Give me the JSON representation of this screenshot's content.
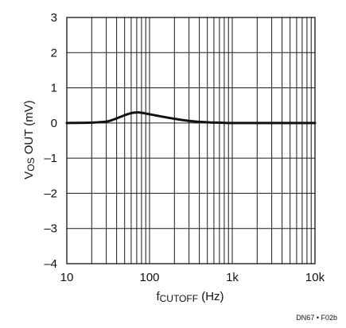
{
  "chart_data": {
    "type": "line",
    "x_scale": "log",
    "xlim": [
      10,
      10000
    ],
    "ylim": [
      -4,
      3
    ],
    "x_ticks": [
      {
        "value": 10,
        "label": "10"
      },
      {
        "value": 100,
        "label": "100"
      },
      {
        "value": 1000,
        "label": "1k"
      },
      {
        "value": 10000,
        "label": "10k"
      }
    ],
    "y_ticks": [
      {
        "value": 3,
        "label": "3"
      },
      {
        "value": 2,
        "label": "2"
      },
      {
        "value": 1,
        "label": "1"
      },
      {
        "value": 0,
        "label": "0"
      },
      {
        "value": -1,
        "label": "–1"
      },
      {
        "value": -2,
        "label": "–2"
      },
      {
        "value": -3,
        "label": "–3"
      },
      {
        "value": -4,
        "label": "–4"
      }
    ],
    "xlabel_main": "f",
    "xlabel_sub": "CUTOFF",
    "xlabel_unit": " (Hz)",
    "ylabel_main": "V",
    "ylabel_sub": "OS",
    "ylabel_rest": " OUT (mV)",
    "grid": true,
    "series": [
      {
        "x": [
          10,
          20,
          30,
          35,
          40,
          50,
          60,
          70,
          80,
          100,
          150,
          200,
          300,
          500,
          700,
          1000,
          2000,
          5000,
          10000
        ],
        "y": [
          0,
          0.01,
          0.04,
          0.08,
          0.13,
          0.22,
          0.28,
          0.3,
          0.29,
          0.25,
          0.17,
          0.12,
          0.06,
          0.02,
          0.01,
          0.0,
          0.0,
          0.0,
          0.0
        ]
      }
    ],
    "color": "#111111"
  },
  "figure_code": "DN67 • F02b"
}
